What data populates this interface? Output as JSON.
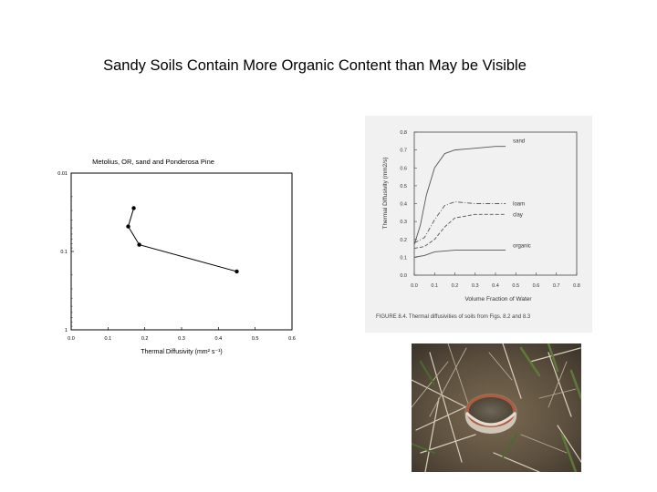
{
  "slide": {
    "title": "Sandy Soils Contain More Organic Content than May be Visible"
  },
  "chart_data": [
    {
      "type": "line",
      "title": "Metolius, OR, sand and Ponderosa Pine",
      "xlabel": "Thermal Diffusivity (mm² s⁻¹)",
      "ylabel": "",
      "x_ticks": [
        "0.0",
        "0.1",
        "0.2",
        "0.3",
        "0.4",
        "0.5",
        "0.6"
      ],
      "y_ticks": [
        "0.01",
        "0.1",
        "1"
      ],
      "xlim": [
        0,
        0.6
      ],
      "ylim": [
        0.01,
        1
      ],
      "y_scale": "log",
      "y_inverted": true,
      "series": [
        {
          "points": [
            [
              0.17,
              0.028
            ],
            [
              0.155,
              0.048
            ],
            [
              0.185,
              0.082
            ],
            [
              0.45,
              0.18
            ]
          ]
        }
      ]
    },
    {
      "type": "line",
      "title": "",
      "xlabel": "Volume Fraction of Water",
      "ylabel": "Thermal Diffusivity (mm2/s)",
      "x_ticks": [
        "0.0",
        "0.1",
        "0.2",
        "0.3",
        "0.4",
        "0.5",
        "0.6",
        "0.7",
        "0.8"
      ],
      "y_ticks": [
        "0.0",
        "0.1",
        "0.2",
        "0.3",
        "0.4",
        "0.5",
        "0.6",
        "0.7",
        "0.8"
      ],
      "xlim": [
        0,
        0.8
      ],
      "ylim": [
        0,
        0.8
      ],
      "caption": "FIGURE 8.4. Thermal diffusivities of soils from Figs. 8.2 and 8.3",
      "series": [
        {
          "name": "sand",
          "style": "solid",
          "x": [
            0,
            0.03,
            0.06,
            0.1,
            0.15,
            0.2,
            0.3,
            0.4,
            0.45
          ],
          "y": [
            0.17,
            0.28,
            0.45,
            0.6,
            0.68,
            0.7,
            0.71,
            0.72,
            0.72
          ]
        },
        {
          "name": "loam",
          "style": "dashdot",
          "x": [
            0,
            0.05,
            0.1,
            0.15,
            0.2,
            0.3,
            0.4,
            0.45
          ],
          "y": [
            0.18,
            0.21,
            0.31,
            0.39,
            0.41,
            0.4,
            0.4,
            0.4
          ]
        },
        {
          "name": "clay",
          "style": "dashed",
          "x": [
            0,
            0.05,
            0.1,
            0.15,
            0.2,
            0.3,
            0.4,
            0.45
          ],
          "y": [
            0.15,
            0.16,
            0.2,
            0.27,
            0.32,
            0.34,
            0.34,
            0.34
          ]
        },
        {
          "name": "organic",
          "style": "solid",
          "x": [
            0,
            0.05,
            0.1,
            0.2,
            0.3,
            0.45
          ],
          "y": [
            0.1,
            0.11,
            0.13,
            0.14,
            0.14,
            0.14
          ]
        }
      ]
    }
  ],
  "photo": {
    "description_icon": "soil-sample-photo"
  }
}
